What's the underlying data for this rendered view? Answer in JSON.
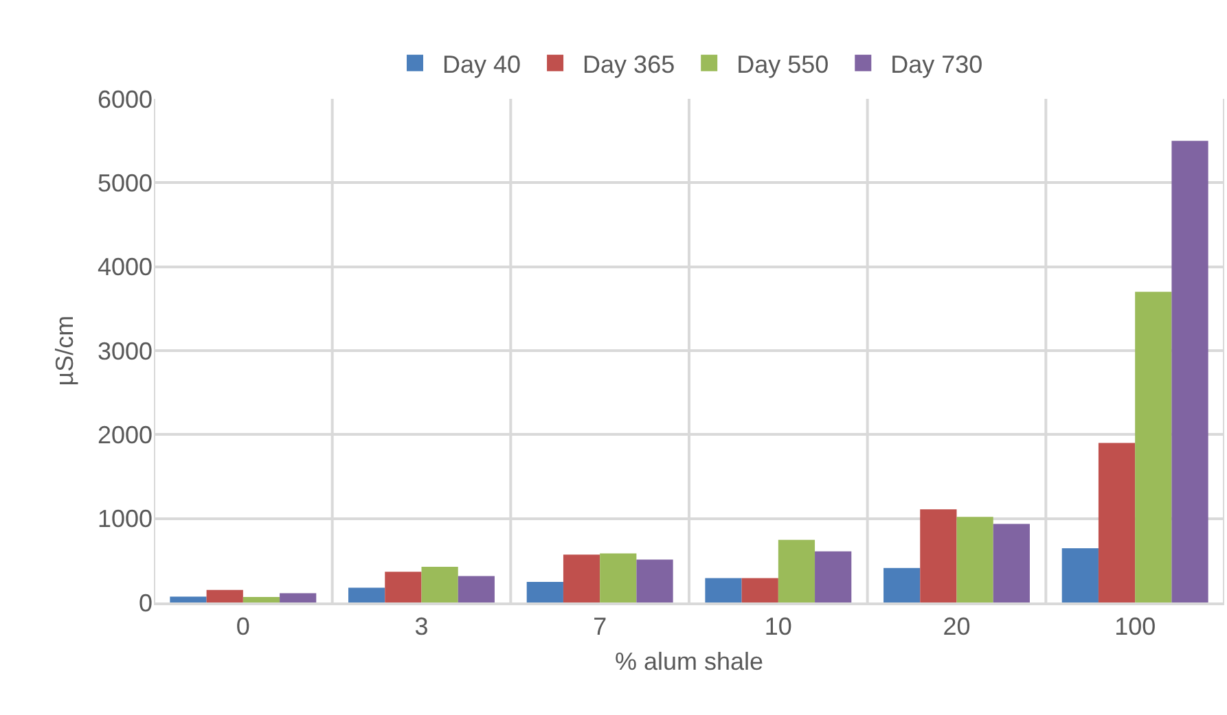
{
  "chart_data": {
    "type": "bar",
    "xlabel": "% alum shale",
    "ylabel": "µS/cm",
    "categories": [
      "0",
      "3",
      "7",
      "10",
      "20",
      "100"
    ],
    "series": [
      {
        "name": "Day 40",
        "color": "#4a7ebb",
        "values": [
          70,
          175,
          245,
          290,
          410,
          645
        ]
      },
      {
        "name": "Day 365",
        "color": "#c0504d",
        "values": [
          150,
          365,
          570,
          290,
          1110,
          1900
        ]
      },
      {
        "name": "Day 550",
        "color": "#9bbb59",
        "values": [
          65,
          425,
          585,
          745,
          1020,
          3700
        ]
      },
      {
        "name": "Day 730",
        "color": "#8064a2",
        "values": [
          110,
          315,
          510,
          610,
          935,
          5500
        ]
      }
    ],
    "ylim": [
      0,
      6000
    ],
    "yticks": [
      0,
      1000,
      2000,
      3000,
      4000,
      5000,
      6000
    ],
    "grid": true,
    "legend": "top"
  }
}
